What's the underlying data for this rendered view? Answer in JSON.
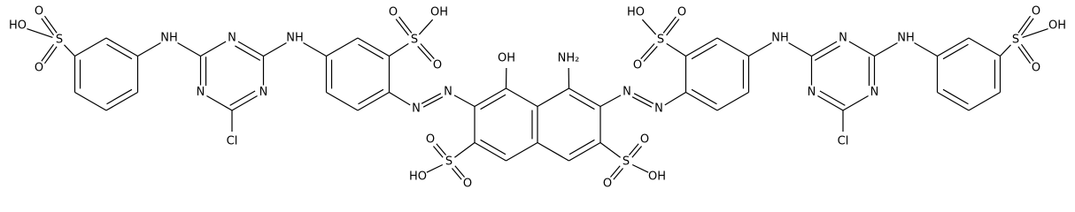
{
  "labels": [
    "O",
    "HO",
    "S",
    "O",
    "NH",
    "N",
    "N",
    "N",
    "Cl",
    "NH",
    "S",
    "O",
    "OH",
    "O",
    "N",
    "N",
    "OH",
    "S",
    "O",
    "O",
    "HO",
    "O",
    "OH",
    "S",
    "O",
    "NH",
    "N",
    "N",
    "N",
    "Cl",
    "NH",
    "S",
    "O",
    "HO",
    "O",
    "N",
    "N",
    "NH₂",
    "S",
    "O",
    "O",
    "OH"
  ]
}
